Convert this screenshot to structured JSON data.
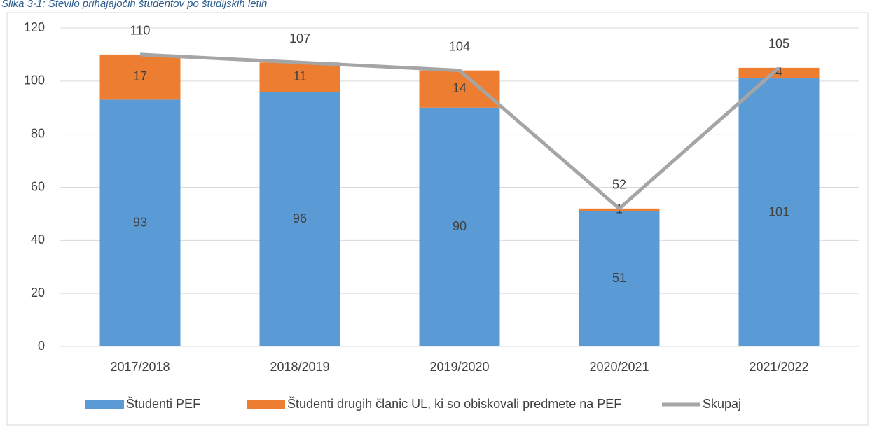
{
  "chart_data": {
    "type": "bar",
    "stacked": true,
    "title": "Slika 3-1: Število prihajajočih študentov po študijskih letih",
    "categories": [
      "2017/2018",
      "2018/2019",
      "2019/2020",
      "2020/2021",
      "2021/2022"
    ],
    "series": [
      {
        "name": "Študenti PEF",
        "color": "#5b9bd5",
        "type": "bar",
        "values": [
          93,
          96,
          90,
          51,
          101
        ]
      },
      {
        "name": "Študenti drugih članic UL, ki so obiskovali predmete na PEF",
        "color": "#ed7d31",
        "type": "bar",
        "values": [
          17,
          11,
          14,
          1,
          4
        ]
      },
      {
        "name": "Skupaj",
        "color": "#a5a5a5",
        "type": "line",
        "values": [
          110,
          107,
          104,
          52,
          105
        ]
      }
    ],
    "ylim": [
      0,
      120
    ],
    "yticks": [
      0,
      20,
      40,
      60,
      80,
      100,
      120
    ],
    "grid": true,
    "legend": "bottom"
  }
}
